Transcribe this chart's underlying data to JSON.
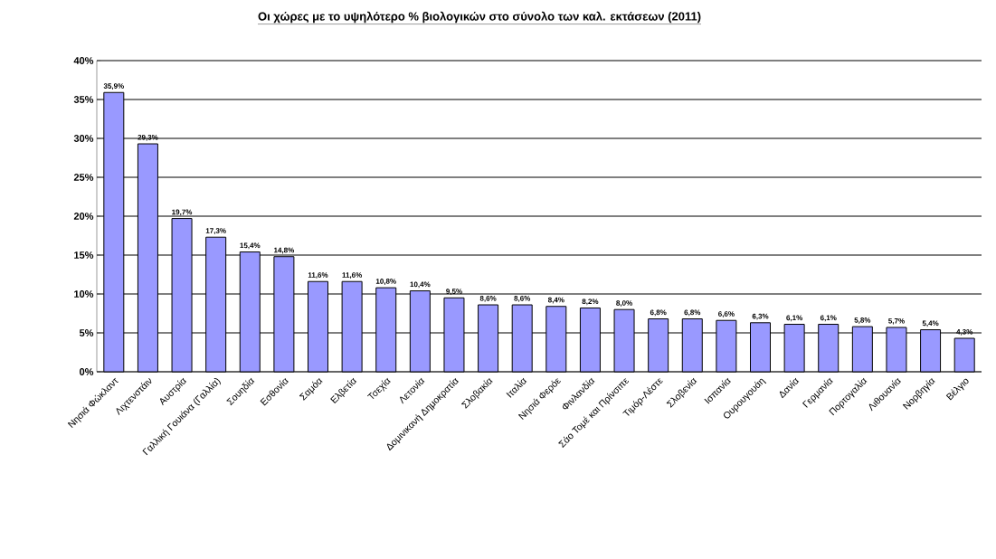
{
  "chart_data": {
    "type": "bar",
    "title": "Οι χώρες με το υψηλότερο % βιολογικών στο σύνολο των καλ. εκτάσεων (2011)",
    "categories": [
      "Νησιά Φώκλαντ",
      "Λιχτενστάιν",
      "Αυστρία",
      "Γαλλική Γουιάνα (Γαλλία)",
      "Σουηδία",
      "Εσθονία",
      "Σαμόα",
      "Ελβετία",
      "Τσεχία",
      "Λετονία",
      "Δομινικανή Δημοκρατία",
      "Σλοβακία",
      "Ιταλία",
      "Νησιά Φερόε",
      "Φινλανδία",
      "Σάο Τομέ και Πρίνσιπε",
      "Τιμόρ-Λέστε",
      "Σλοβενία",
      "Ισπανία",
      "Ουρουγουάη",
      "Δανία",
      "Γερμανία",
      "Πορτογαλία",
      "Λιθουανία",
      "Νορβηγία",
      "Βέλγιο"
    ],
    "values": [
      35.9,
      29.3,
      19.7,
      17.3,
      15.4,
      14.8,
      11.6,
      11.6,
      10.8,
      10.4,
      9.5,
      8.6,
      8.6,
      8.4,
      8.2,
      8.0,
      6.8,
      6.8,
      6.6,
      6.3,
      6.1,
      6.1,
      5.8,
      5.7,
      5.4,
      4.3
    ],
    "value_labels": [
      "35,9%",
      "29,3%",
      "19,7%",
      "17,3%",
      "15,4%",
      "14,8%",
      "11,6%",
      "11,6%",
      "10,8%",
      "10,4%",
      "9,5%",
      "8,6%",
      "8,6%",
      "8,4%",
      "8,2%",
      "8,0%",
      "6,8%",
      "6,8%",
      "6,6%",
      "6,3%",
      "6,1%",
      "6,1%",
      "5,8%",
      "5,7%",
      "5,4%",
      "4,3%"
    ],
    "color": "#9999ff",
    "ylim": [
      0,
      40
    ],
    "yticks": [
      {
        "value": 0,
        "label": "0%"
      },
      {
        "value": 5,
        "label": "5%"
      },
      {
        "value": 10,
        "label": "10%"
      },
      {
        "value": 15,
        "label": "15%"
      },
      {
        "value": 20,
        "label": "20%"
      },
      {
        "value": 25,
        "label": "25%"
      },
      {
        "value": 30,
        "label": "30%"
      },
      {
        "value": 35,
        "label": "35%"
      },
      {
        "value": 40,
        "label": "40%"
      }
    ],
    "grid": "y"
  }
}
